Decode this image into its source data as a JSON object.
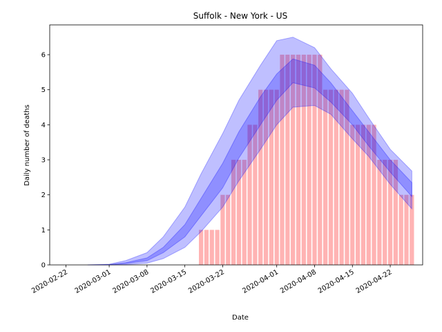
{
  "chart_data": {
    "type": "bar_band",
    "title": "Suffolk - New York - US",
    "xlabel": "Date",
    "ylabel": "Daily number of deaths",
    "x": [
      "2020-03-18",
      "2020-03-19",
      "2020-03-20",
      "2020-03-21",
      "2020-03-22",
      "2020-03-23",
      "2020-03-24",
      "2020-03-25",
      "2020-03-26",
      "2020-03-27",
      "2020-03-28",
      "2020-03-29",
      "2020-03-30",
      "2020-03-31",
      "2020-04-01",
      "2020-04-02",
      "2020-04-03",
      "2020-04-04",
      "2020-04-05",
      "2020-04-06",
      "2020-04-07",
      "2020-04-08",
      "2020-04-09",
      "2020-04-10",
      "2020-04-11",
      "2020-04-12",
      "2020-04-13",
      "2020-04-14",
      "2020-04-15",
      "2020-04-16",
      "2020-04-17",
      "2020-04-18",
      "2020-04-19",
      "2020-04-20",
      "2020-04-21",
      "2020-04-22",
      "2020-04-23",
      "2020-04-24",
      "2020-04-25",
      "2020-04-26"
    ],
    "values": [
      1,
      1,
      1,
      1,
      2,
      2,
      3,
      3,
      3,
      4,
      4,
      5,
      5,
      5,
      5,
      6,
      6,
      6,
      6,
      6,
      6,
      6,
      6,
      5,
      5,
      5,
      5,
      5,
      4,
      4,
      4,
      4,
      4,
      3,
      3,
      3,
      3,
      2,
      2,
      2
    ],
    "color": "#ffb3b3",
    "band_x": [
      "2020-02-26",
      "2020-03-01",
      "2020-03-04",
      "2020-03-08",
      "2020-03-11",
      "2020-03-15",
      "2020-03-18",
      "2020-03-22",
      "2020-03-25",
      "2020-03-29",
      "2020-04-01",
      "2020-04-04",
      "2020-04-08",
      "2020-04-11",
      "2020-04-15",
      "2020-04-18",
      "2020-04-22",
      "2020-04-26"
    ],
    "bands": [
      {
        "color": "#0000ff",
        "upper": [
          0,
          0.02,
          0.12,
          0.35,
          0.8,
          1.65,
          2.6,
          3.75,
          4.7,
          5.7,
          6.4,
          6.5,
          6.2,
          5.6,
          4.9,
          4.2,
          3.3,
          2.68
        ],
        "lower": [
          0,
          0,
          0.01,
          0.05,
          0.18,
          0.5,
          0.95,
          1.65,
          2.4,
          3.3,
          4.0,
          4.5,
          4.55,
          4.3,
          3.6,
          3.1,
          2.3,
          1.6
        ]
      },
      {
        "color": "#0000ff",
        "upper": [
          0,
          0.01,
          0.06,
          0.2,
          0.5,
          1.15,
          1.9,
          2.9,
          3.8,
          4.8,
          5.45,
          5.88,
          5.7,
          5.2,
          4.4,
          3.8,
          3.0,
          2.35
        ],
        "lower": [
          0,
          0.005,
          0.04,
          0.12,
          0.35,
          0.8,
          1.4,
          2.2,
          3.05,
          4.0,
          4.7,
          5.2,
          5.05,
          4.65,
          4.0,
          3.4,
          2.65,
          1.95
        ]
      }
    ],
    "xlim": [
      "2020-02-19",
      "2020-04-28"
    ],
    "xticks": [
      "2020-02-22",
      "2020-03-01",
      "2020-03-08",
      "2020-03-15",
      "2020-03-22",
      "2020-04-01",
      "2020-04-08",
      "2020-04-15",
      "2020-04-22"
    ],
    "ylim": [
      0,
      6.85
    ],
    "yticks": [
      0,
      1,
      2,
      3,
      4,
      5,
      6
    ]
  }
}
